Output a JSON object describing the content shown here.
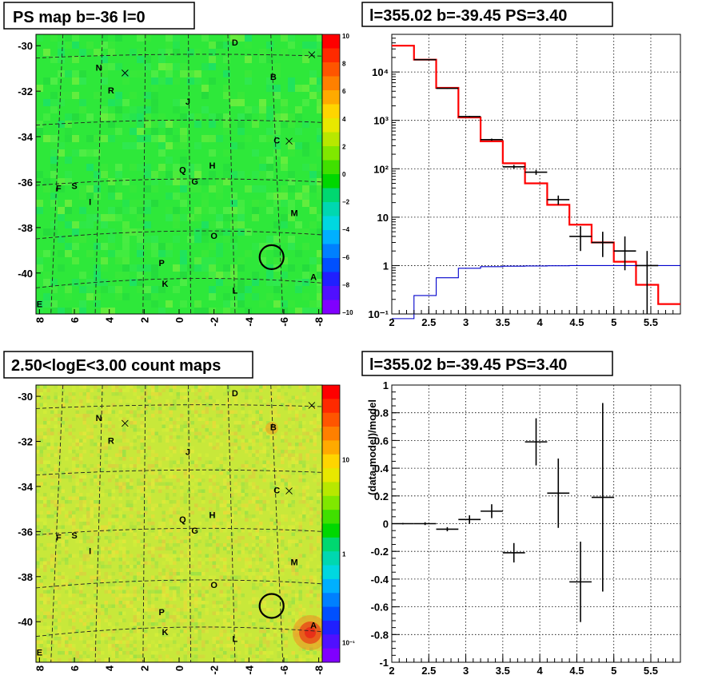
{
  "panels": {
    "ps_map": {
      "title": "PS map b=-36 l=0",
      "y_ticks": [
        "-30",
        "-32",
        "-34",
        "-36",
        "-38",
        "-40"
      ],
      "x_ticks": [
        "8",
        "6",
        "4",
        "2",
        "0",
        "-2",
        "-4",
        "-6",
        "-8"
      ],
      "colorbar_ticks": [
        "10",
        "8",
        "6",
        "4",
        "2",
        "0",
        "−2",
        "−4",
        "−6",
        "−8",
        "−10"
      ],
      "labels": [
        "D",
        "N",
        "B",
        "R",
        "J",
        "C",
        "Q",
        "H",
        "G",
        "F",
        "S",
        "I",
        "M",
        "O",
        "P",
        "K",
        "L",
        "A",
        "E"
      ],
      "background_color": "#2ee83a",
      "circle_color": "#000000"
    },
    "count_map": {
      "title": "2.50<logE<3.00 count maps",
      "y_ticks": [
        "-30",
        "-32",
        "-34",
        "-36",
        "-38",
        "-40"
      ],
      "x_ticks": [
        "8",
        "6",
        "4",
        "2",
        "0",
        "-2",
        "-4",
        "-6",
        "-8"
      ],
      "colorbar_ticks": [
        "10",
        "1",
        "10⁻¹"
      ],
      "labels": [
        "D",
        "N",
        "B",
        "R",
        "J",
        "C",
        "Q",
        "H",
        "G",
        "F",
        "S",
        "I",
        "M",
        "O",
        "P",
        "K",
        "L",
        "A",
        "E"
      ],
      "background_color": "#c8e83a",
      "hotspot_color": "#e83018"
    },
    "spectrum": {
      "title": "l=355.02 b=-39.45 PS=3.40",
      "x_ticks": [
        "2",
        "2.5",
        "3",
        "3.5",
        "4",
        "4.5",
        "5",
        "5.5"
      ],
      "y_ticks": [
        "10⁻¹",
        "1",
        "10",
        "10²",
        "10³",
        "10⁴"
      ]
    },
    "residual": {
      "title": "l=355.02 b=-39.45 PS=3.40",
      "ylabel": "(data-model)/model",
      "x_ticks": [
        "2",
        "2.5",
        "3",
        "3.5",
        "4",
        "4.5",
        "5",
        "5.5"
      ],
      "y_ticks": [
        "1",
        "0.8",
        "0.6",
        "0.4",
        "0.2",
        "0",
        "-0.2",
        "-0.4",
        "-0.6",
        "-0.8",
        "-1"
      ]
    }
  },
  "chart_data": [
    {
      "type": "heatmap",
      "title": "PS map b=-36 l=0",
      "xlim": [
        8.2,
        -8.2
      ],
      "ylim": [
        -41.8,
        -29.5
      ],
      "zlim": [
        -10,
        10
      ],
      "colorscale": "rainbow",
      "marked_source": {
        "x": -5.3,
        "y": -39.3
      },
      "labels": [
        {
          "text": "D",
          "x": -3.2,
          "y": -30.0
        },
        {
          "text": "N",
          "x": 4.6,
          "y": -31.1
        },
        {
          "text": "B",
          "x": -5.4,
          "y": -31.5
        },
        {
          "text": "R",
          "x": 3.9,
          "y": -32.1
        },
        {
          "text": "J",
          "x": -0.5,
          "y": -32.6
        },
        {
          "text": "C",
          "x": -5.6,
          "y": -34.3
        },
        {
          "text": "Q",
          "x": -0.2,
          "y": -35.6
        },
        {
          "text": "H",
          "x": -1.9,
          "y": -35.4
        },
        {
          "text": "G",
          "x": -0.9,
          "y": -36.1
        },
        {
          "text": "F",
          "x": 6.9,
          "y": -36.4
        },
        {
          "text": "S",
          "x": 6.0,
          "y": -36.3
        },
        {
          "text": "I",
          "x": 5.1,
          "y": -37.0
        },
        {
          "text": "M",
          "x": -6.6,
          "y": -37.5
        },
        {
          "text": "O",
          "x": -2.0,
          "y": -38.5
        },
        {
          "text": "P",
          "x": 1.0,
          "y": -39.7
        },
        {
          "text": "K",
          "x": 0.8,
          "y": -40.6
        },
        {
          "text": "L",
          "x": -3.2,
          "y": -40.9
        },
        {
          "text": "A",
          "x": -7.7,
          "y": -40.3
        },
        {
          "text": "E",
          "x": 8.0,
          "y": -41.5
        }
      ]
    },
    {
      "type": "heatmap",
      "title": "2.50<logE<3.00 count maps",
      "xlim": [
        8.2,
        -8.2
      ],
      "ylim": [
        -41.8,
        -29.5
      ],
      "zlim": [
        0.05,
        30
      ],
      "zscale": "log",
      "colorscale": "rainbow",
      "marked_source": {
        "x": -5.3,
        "y": -39.3
      }
    },
    {
      "type": "line",
      "title": "l=355.02 b=-39.45 PS=3.40",
      "xlim": [
        2,
        5.9
      ],
      "ylim": [
        0.1,
        60000
      ],
      "yscale": "log",
      "series": [
        {
          "color": "#ff0000",
          "style": "step",
          "edges": [
            2.0,
            2.3,
            2.6,
            2.9,
            3.2,
            3.5,
            3.8,
            4.1,
            4.4,
            4.7,
            5.0,
            5.3,
            5.6,
            5.9
          ],
          "values": [
            35000,
            18000,
            4700,
            1150,
            370,
            130,
            50,
            18,
            7,
            3,
            1.2,
            0.4,
            0.16
          ]
        },
        {
          "color": "#0000cc",
          "style": "step",
          "edges": [
            2.0,
            2.3,
            2.6,
            2.9,
            3.2,
            3.5,
            3.8,
            4.1,
            4.4,
            4.7,
            5.0,
            5.3,
            5.6,
            5.9
          ],
          "values": [
            0.08,
            0.24,
            0.56,
            0.88,
            0.95,
            0.97,
            0.98,
            0.99,
            1.0,
            1.0,
            1.0,
            1.0,
            1.0
          ]
        },
        {
          "color": "#000000",
          "style": "errorbar",
          "x": [
            2.45,
            2.75,
            3.05,
            3.35,
            3.65,
            3.95,
            4.25,
            4.55,
            4.85,
            5.15,
            5.45
          ],
          "xerr": 0.15,
          "y": [
            18000,
            4600,
            1200,
            400,
            110,
            85,
            23,
            4.0,
            3.0,
            2.0,
            1.0
          ],
          "ylow": [
            17800,
            4500,
            1160,
            380,
            100,
            75,
            18,
            2.0,
            1.5,
            0.8,
            0.1
          ],
          "yhigh": [
            18200,
            4700,
            1240,
            420,
            120,
            95,
            28,
            6.5,
            5.0,
            4.0,
            2.0
          ]
        }
      ]
    },
    {
      "type": "scatter",
      "title": "l=355.02 b=-39.45 PS=3.40",
      "ylabel": "(data-model)/model",
      "xlim": [
        2,
        5.9
      ],
      "ylim": [
        -1,
        1
      ],
      "points": [
        {
          "x": 2.15,
          "y": 0.0,
          "xerr": 0.15,
          "yerr": 0.005
        },
        {
          "x": 2.45,
          "y": 0.0,
          "xerr": 0.15,
          "yerr": 0.01
        },
        {
          "x": 2.75,
          "y": -0.04,
          "xerr": 0.15,
          "yerr": 0.015
        },
        {
          "x": 3.05,
          "y": 0.03,
          "xerr": 0.15,
          "yerr": 0.03
        },
        {
          "x": 3.35,
          "y": 0.09,
          "xerr": 0.15,
          "yerr": 0.05
        },
        {
          "x": 3.65,
          "y": -0.21,
          "xerr": 0.15,
          "yerr": 0.07
        },
        {
          "x": 3.95,
          "y": 0.59,
          "xerr": 0.15,
          "yerr": 0.17
        },
        {
          "x": 4.25,
          "y": 0.22,
          "xerr": 0.15,
          "yerr": 0.25
        },
        {
          "x": 4.55,
          "y": -0.42,
          "xerr": 0.15,
          "yerr": 0.29
        },
        {
          "x": 4.85,
          "y": 0.19,
          "xerr": 0.15,
          "yerr": 0.68
        }
      ]
    }
  ]
}
